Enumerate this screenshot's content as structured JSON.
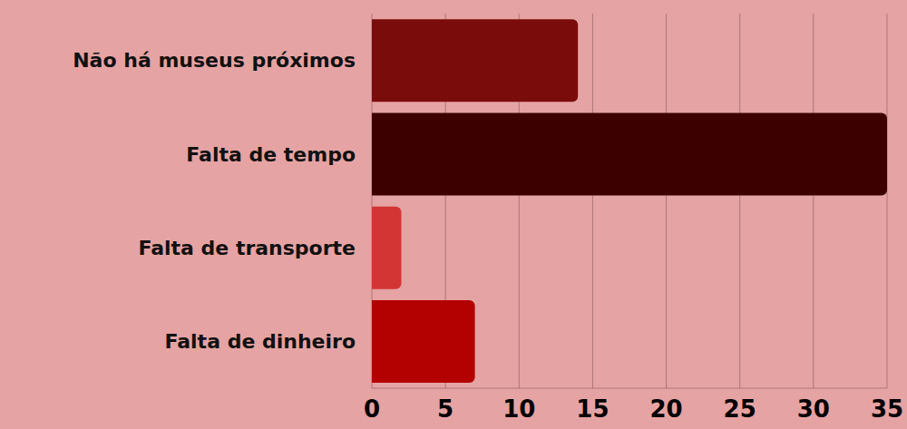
{
  "chart_data": {
    "type": "bar",
    "orientation": "horizontal",
    "categories": [
      "Não há museus próximos",
      "Falta de tempo",
      "Falta de transporte",
      "Falta de dinheiro"
    ],
    "values": [
      14,
      35,
      2,
      7
    ],
    "colors": [
      "#7b0c0c",
      "#3d0000",
      "#d33535",
      "#b30000"
    ],
    "xlim": [
      0,
      35
    ],
    "xticks": [
      0,
      5,
      10,
      15,
      20,
      25,
      30,
      35
    ],
    "grid": true
  }
}
